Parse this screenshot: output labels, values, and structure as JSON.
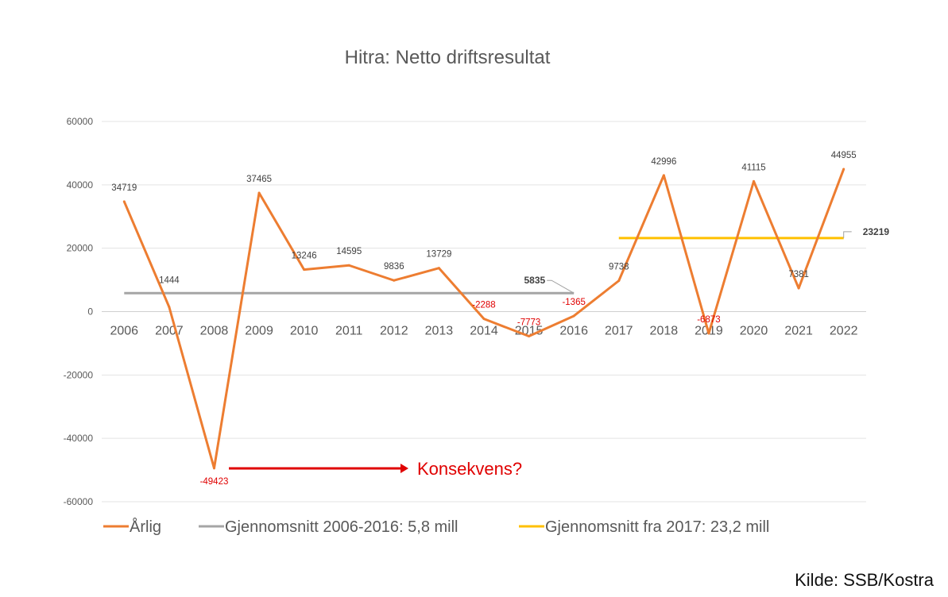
{
  "chart_data": {
    "type": "line",
    "title": "Hitra: Netto driftsresultat",
    "categories": [
      "2006",
      "2007",
      "2008",
      "2009",
      "2010",
      "2011",
      "2012",
      "2013",
      "2014",
      "2015",
      "2016",
      "2017",
      "2018",
      "2019",
      "2020",
      "2021",
      "2022"
    ],
    "ylim": [
      -60000,
      60000
    ],
    "yticks": [
      60000,
      40000,
      20000,
      0,
      -20000,
      -40000,
      -60000
    ],
    "ytick_labels": [
      "60000",
      "40000",
      "20000",
      "0",
      "-20000",
      "-40000",
      "-60000"
    ],
    "grid": true,
    "legend_position": "bottom",
    "series": [
      {
        "name": "Årlig",
        "color": "#ED7D31",
        "values": [
          34719,
          1444,
          -49423,
          37465,
          13246,
          14595,
          9836,
          13729,
          -2288,
          -7773,
          -1365,
          9738,
          42996,
          -6873,
          41115,
          7381,
          44955
        ],
        "labels": [
          "34719",
          "1444",
          "-49423",
          "37465",
          "13246",
          "14595",
          "9836",
          "13729",
          "-2288",
          "-7773",
          "-1365",
          "9738",
          "42996",
          "-6873",
          "41115",
          "7381",
          "44955"
        ]
      },
      {
        "name": "Gjennomsnitt 2006-2016: 5,8 mill",
        "color": "#A5A5A5",
        "x_from": "2006",
        "x_to": "2016",
        "value": 5835,
        "label": "5835"
      },
      {
        "name": "Gjennomsnitt fra 2017: 23,2 mill",
        "color": "#FFC000",
        "x_from": "2017",
        "x_to": "2022",
        "value": 23219,
        "label": "23219"
      }
    ],
    "annotation": {
      "text": "Konsekvens?",
      "color": "#E00000"
    }
  },
  "source": "Kilde: SSB/Kostra"
}
